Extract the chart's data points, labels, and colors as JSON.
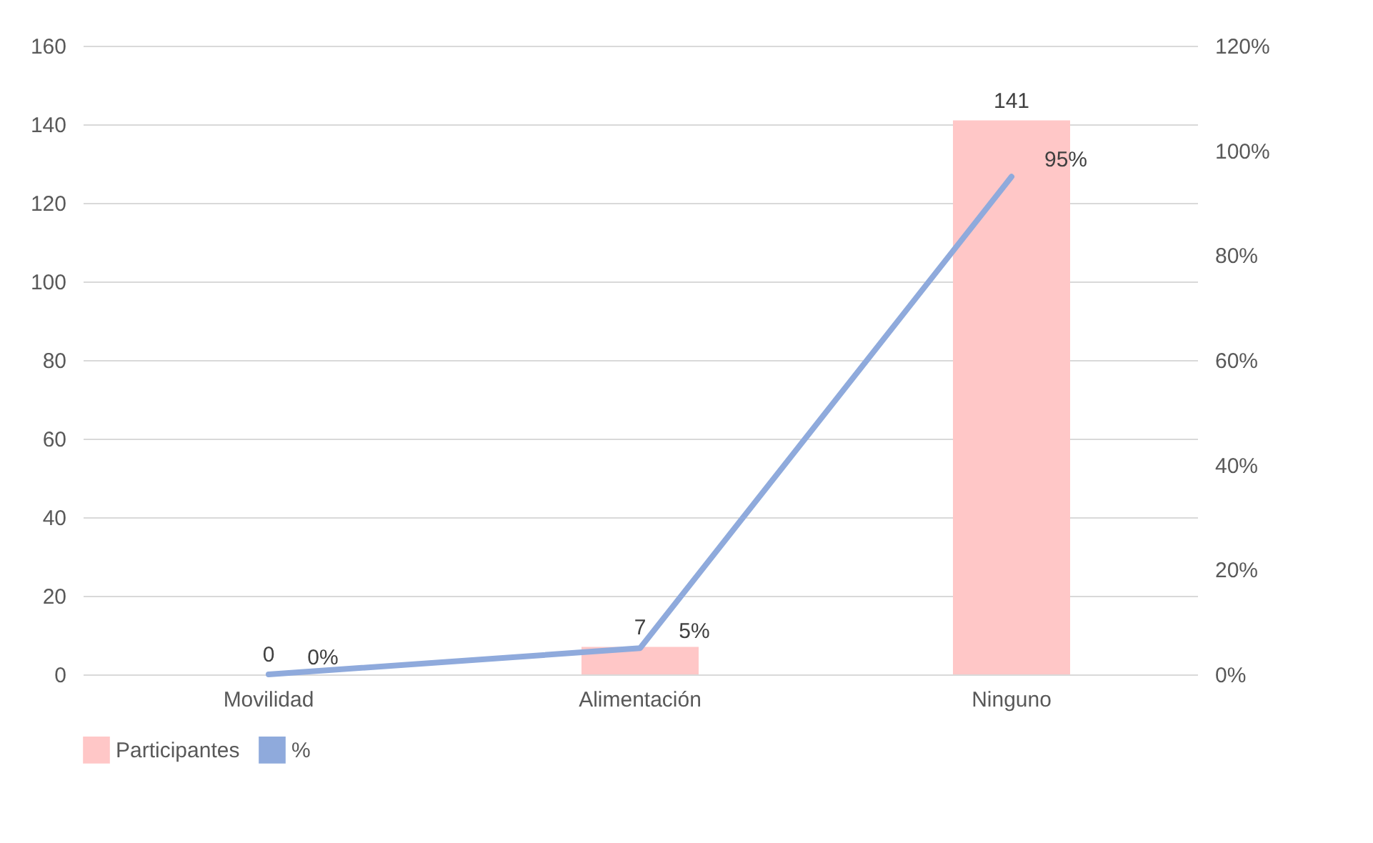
{
  "chart_data": {
    "type": "bar",
    "categories": [
      "Movilidad",
      "Alimentación",
      "Ninguno"
    ],
    "series": [
      {
        "name": "Participantes",
        "color": "#ffc7c7",
        "values": [
          0,
          7,
          141
        ]
      },
      {
        "name": "%",
        "type": "line",
        "axis": "y2",
        "color": "#8faadc",
        "values": [
          0,
          5,
          95
        ],
        "value_labels": [
          "0%",
          "5%",
          "95%"
        ]
      }
    ],
    "data_labels": true,
    "ylim": [
      0,
      160
    ],
    "yticks": [
      0,
      20,
      40,
      60,
      80,
      100,
      120,
      140,
      160
    ],
    "y2lim": [
      0,
      120
    ],
    "y2ticks": [
      {
        "value": 0,
        "label": "0%"
      },
      {
        "value": 20,
        "label": "20%"
      },
      {
        "value": 40,
        "label": "40%"
      },
      {
        "value": 60,
        "label": "60%"
      },
      {
        "value": 80,
        "label": "80%"
      },
      {
        "value": 100,
        "label": "100%"
      },
      {
        "value": 120,
        "label": "120%"
      }
    ],
    "grid": "y",
    "legend": "bottom"
  }
}
